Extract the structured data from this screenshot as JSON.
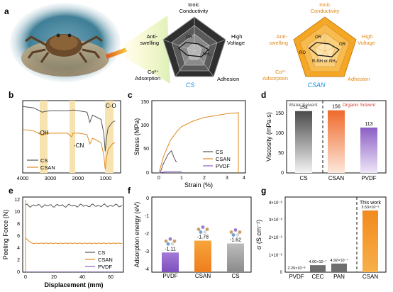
{
  "panels": {
    "a": {
      "letter": "a",
      "radar_left": {
        "name": "CS",
        "axes": [
          "Ionic",
          "Conductivity",
          "High",
          "Voltage",
          "Adhesion",
          "Co²⁺",
          "Adsorption",
          "Anti-",
          "swelling"
        ],
        "groups": [
          "OH",
          "NH₂"
        ]
      },
      "radar_right": {
        "name": "CSAN",
        "axes": [
          "Ionic",
          "Conductivity",
          "High",
          "Voltage",
          "Adhesion",
          "Co²⁺",
          "Adsorption",
          "Anti-",
          "swelling"
        ],
        "groups": [
          "OR",
          "OR",
          "RO",
          "R-NH or",
          "NH₂"
        ]
      },
      "label_color": "#e08a1e",
      "cs_color": "#1a8fd6"
    },
    "b": {
      "letter": "b",
      "annotations": [
        "C-O",
        "-OH",
        "-CN"
      ],
      "xticks": [
        "4000",
        "3000",
        "2000",
        "1000"
      ],
      "legend": [
        "CS",
        "CSAN"
      ]
    },
    "c": {
      "letter": "c",
      "xlabel": "Strain (%)",
      "ylabel": "Stress (MPa)",
      "xticks": [
        "0",
        "1",
        "2",
        "3",
        "4"
      ],
      "yticks": [
        "0",
        "50",
        "100",
        "150"
      ],
      "legend": [
        "CS",
        "CSAN",
        "PVDF"
      ]
    },
    "d": {
      "letter": "d",
      "ylabel": "Viscosity (mPa·s)",
      "region_left": "Water Solvent",
      "region_right": "Organic Solvent",
      "yticks": [
        "0",
        "50",
        "100",
        "150"
      ]
    },
    "e": {
      "letter": "e",
      "xlabel": "Displacement (mm)",
      "ylabel": "Peeling Force (N)",
      "xticks": [
        "0",
        "20",
        "40",
        "60"
      ],
      "yticks": [
        "0",
        "2",
        "4",
        "6",
        "8",
        "10",
        "12"
      ],
      "legend": [
        "CS",
        "CSAN",
        "PVDF"
      ]
    },
    "f": {
      "letter": "f",
      "ylabel": "Adsorption energy (eV)",
      "yticks": [
        "0",
        "-1",
        "-2",
        "-3",
        "-4"
      ]
    },
    "g": {
      "letter": "g",
      "ylabel": "σ (S cm⁻¹)",
      "yticks": [
        "0",
        "1×10⁻⁶",
        "2×10⁻⁶",
        "3×10⁻⁶",
        "4×10⁻⁶"
      ],
      "this_work": "This work"
    }
  },
  "chart_data": [
    {
      "panel": "b",
      "type": "line",
      "xlim": [
        4000,
        500
      ],
      "series": [
        {
          "name": "CS",
          "x": [
            4000,
            3600,
            3400,
            3300,
            3200,
            3000,
            2800,
            2400,
            2200,
            2000,
            1700,
            1600,
            1500,
            1400,
            1200,
            1100,
            1050,
            1000,
            950,
            800,
            700
          ],
          "y": [
            0.92,
            0.9,
            0.86,
            0.84,
            0.85,
            0.86,
            0.86,
            0.86,
            0.87,
            0.86,
            0.84,
            0.7,
            0.8,
            0.78,
            0.74,
            0.55,
            0.3,
            0.5,
            0.62,
            0.7,
            0.72
          ]
        },
        {
          "name": "CSAN",
          "x": [
            4000,
            3600,
            3400,
            3300,
            3200,
            3000,
            2800,
            2400,
            2250,
            2200,
            2000,
            1700,
            1600,
            1500,
            1400,
            1200,
            1100,
            1050,
            1000,
            950,
            800,
            700
          ],
          "y": [
            0.6,
            0.58,
            0.54,
            0.52,
            0.54,
            0.55,
            0.55,
            0.55,
            0.5,
            0.55,
            0.55,
            0.53,
            0.4,
            0.48,
            0.46,
            0.42,
            0.25,
            0.05,
            0.22,
            0.32,
            0.4,
            0.42
          ]
        }
      ]
    },
    {
      "panel": "c",
      "type": "line",
      "xlim": [
        0,
        4
      ],
      "ylim": [
        0,
        150
      ],
      "series": [
        {
          "name": "CS",
          "x": [
            0.05,
            0.2,
            0.4,
            0.55,
            0.65,
            0.75,
            0.8
          ],
          "y": [
            0,
            20,
            40,
            48,
            35,
            25,
            24
          ]
        },
        {
          "name": "CSAN",
          "x": [
            0,
            0.2,
            0.5,
            0.8,
            1.0,
            1.5,
            2.0,
            2.5,
            3.0,
            3.5,
            3.5
          ],
          "y": [
            0,
            35,
            70,
            90,
            100,
            112,
            120,
            124,
            128,
            130,
            0
          ]
        },
        {
          "name": "PVDF",
          "x": [
            0,
            0.2,
            0.4,
            0.6,
            0.8,
            1.0
          ],
          "y": [
            0,
            2,
            3,
            3,
            3,
            3
          ]
        }
      ]
    },
    {
      "panel": "d",
      "type": "bar",
      "categories": [
        "CS",
        "CSAN",
        "PVDF"
      ],
      "values": [
        154,
        156,
        113
      ],
      "ylim": [
        0,
        180
      ]
    },
    {
      "panel": "e",
      "type": "line",
      "xlim": [
        0,
        70
      ],
      "ylim": [
        0,
        12.5
      ],
      "series": [
        {
          "name": "CS",
          "level": 11.3
        },
        {
          "name": "CSAN",
          "level": 4.9
        },
        {
          "name": "PVDF",
          "level": 0.05
        }
      ]
    },
    {
      "panel": "f",
      "type": "bar",
      "categories": [
        "PVDF",
        "CSAN",
        "CS"
      ],
      "values": [
        -1.11,
        -1.78,
        -1.62
      ],
      "labels": [
        "-1.11",
        "-1.78",
        "-1.62"
      ],
      "ylim": [
        0,
        -4
      ]
    },
    {
      "panel": "g",
      "type": "bar",
      "categories": [
        "PVDF",
        "CEC",
        "PAN",
        "CSAN"
      ],
      "values": [
        2.2e-08,
        4e-07,
        4.92e-07,
        3.53e-06
      ],
      "labels": [
        "2.20×10⁻⁸",
        "4.00×10⁻⁷",
        "4.92×10⁻⁷",
        "3.53×10⁻⁶"
      ],
      "ylim": [
        0,
        4.3e-06
      ]
    }
  ],
  "colors": {
    "cs": "#555555",
    "csan": "#e08a1e",
    "pvdf": "#8b5fc4",
    "highlight": "#f6e3b0"
  }
}
